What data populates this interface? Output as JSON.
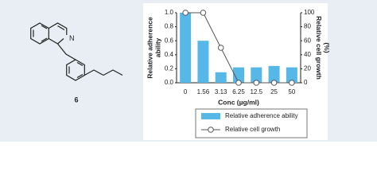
{
  "structure_label": "6",
  "chart_data": {
    "type": "bar_line",
    "categories": [
      "0",
      "1.56",
      "3.13",
      "6.25",
      "12.5",
      "25",
      "50"
    ],
    "xlabel": "Conc (µg/ml)",
    "ylabel": [
      "Relative adherence",
      "ability"
    ],
    "y2label": [
      "Relative cell growth",
      "(%)"
    ],
    "ylim": [
      0,
      1
    ],
    "yticks": [
      {
        "value": 0,
        "label": "0.0"
      },
      0.2,
      0.4,
      0.6,
      0.8,
      {
        "value": 1,
        "label": "1.0"
      }
    ],
    "y2lim": [
      0,
      100
    ],
    "y2ticks": [
      0,
      20,
      40,
      60,
      80,
      100
    ],
    "series": [
      {
        "name": "Relative adherence ability",
        "color": "#55b8e6",
        "kind": "bar",
        "values": [
          1.0,
          0.6,
          0.15,
          0.22,
          0.22,
          0.24,
          0.22
        ]
      },
      {
        "name": "Relative cell growth",
        "color": "#555555",
        "kind": "line",
        "axis": "y2",
        "values": [
          100,
          100,
          50,
          0,
          0,
          0,
          0
        ]
      }
    ]
  }
}
